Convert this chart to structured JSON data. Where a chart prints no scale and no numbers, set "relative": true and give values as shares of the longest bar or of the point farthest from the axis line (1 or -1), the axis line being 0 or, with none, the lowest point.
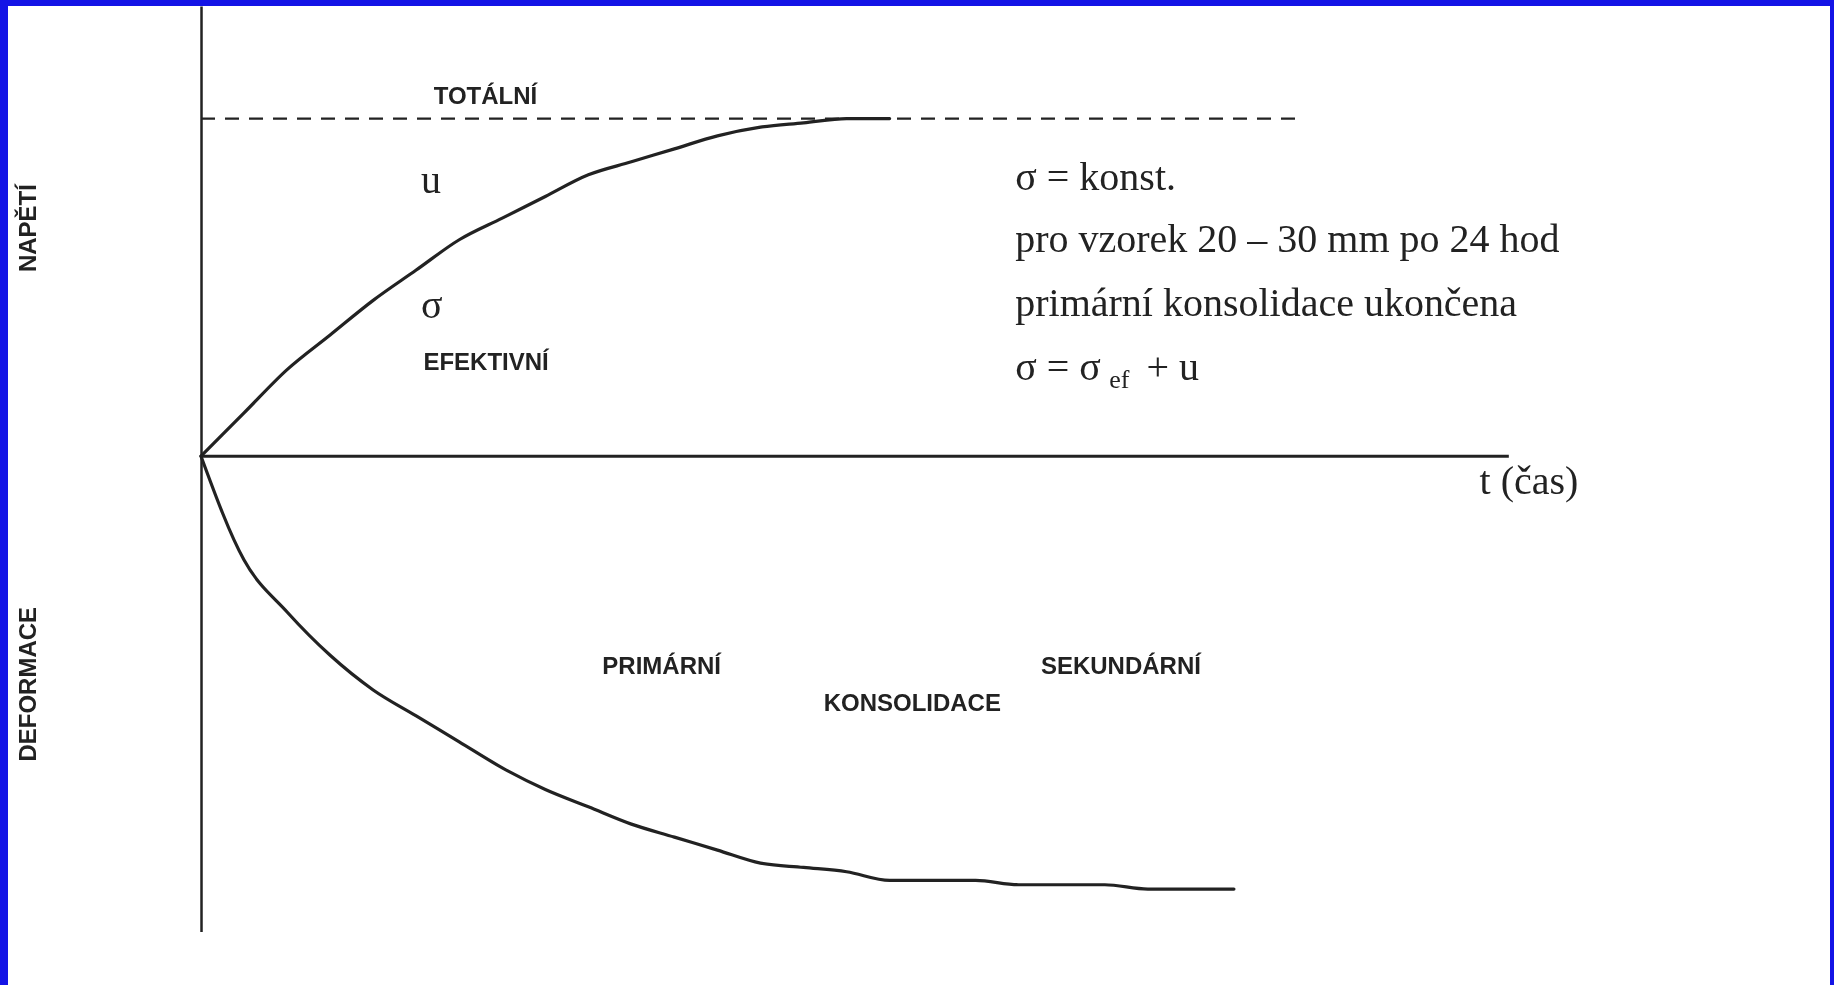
{
  "chart_data": {
    "type": "line",
    "relative": true,
    "categories": [
      null,
      null,
      null,
      null,
      null,
      null,
      null,
      null,
      null,
      null,
      null,
      null,
      null,
      null,
      null,
      null,
      null,
      null,
      null,
      null,
      null,
      null,
      null,
      null,
      null
    ],
    "series": [
      {
        "color": "#222222",
        "values": [
          0,
          0.1,
          0.2,
          0.28,
          0.36,
          0.43,
          0.5,
          0.55,
          0.6,
          0.65,
          0.68,
          0.71,
          0.74,
          0.76,
          0.77,
          0.78,
          0.78,
          null,
          null,
          null,
          null,
          null,
          null,
          null,
          null
        ]
      },
      {
        "color": "#222222",
        "values": [
          0,
          -0.24,
          -0.36,
          -0.46,
          -0.54,
          -0.6,
          -0.66,
          -0.72,
          -0.77,
          -0.81,
          -0.85,
          -0.88,
          -0.91,
          -0.94,
          -0.95,
          -0.96,
          -0.98,
          -0.98,
          -0.98,
          -0.99,
          -0.99,
          -0.99,
          -1,
          -1,
          -1
        ]
      }
    ],
    "ref_lines": [
      {
        "axis": "y",
        "value": 0.78,
        "label": "TOTÁLNÍ",
        "line_style": "dashed",
        "color": "#222222"
      }
    ],
    "annotations": [
      "u",
      "σ",
      "EFEKTIVNÍ",
      "σ = konst.",
      "pro vzorek 20 – 30 mm po 24 hod",
      "primární konsolidace ukončena",
      "σ = σ$_{ef}$ + u",
      "DEFORMACE",
      "PRIMÁRNÍ",
      "KONSOLIDACE",
      "SEKUNDÁRNÍ",
      "NAPĚTÍ",
      "t (čas)"
    ],
    "grid": false,
    "marker": "none",
    "line_style": "solid"
  }
}
